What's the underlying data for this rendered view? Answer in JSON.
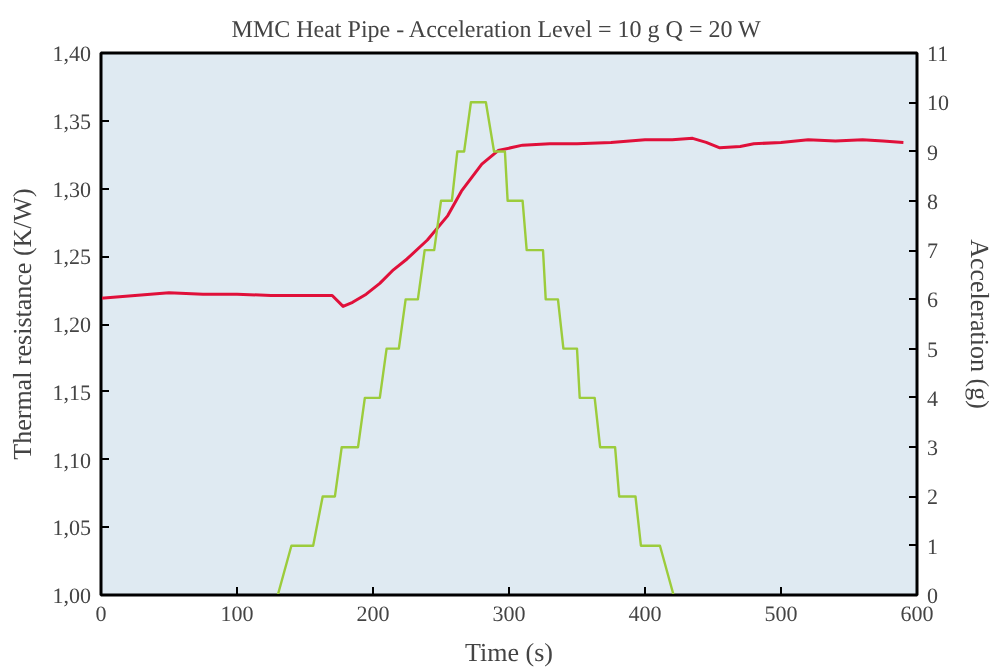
{
  "chart_data": {
    "type": "line",
    "title": "MMC Heat Pipe - Acceleration Level = 10 g     Q = 20 W",
    "xlabel": "Time (s)",
    "ylabel": "Thermal resistance (K/W)",
    "y2label": "Acceleration (g)",
    "xlim": [
      0,
      600
    ],
    "xticks": [
      0,
      100,
      200,
      300,
      400,
      500,
      600
    ],
    "ylim": [
      1.0,
      1.4
    ],
    "yticks": [
      {
        "value": 1.0,
        "label": "1,00"
      },
      {
        "value": 1.05,
        "label": "1,05"
      },
      {
        "value": 1.1,
        "label": "1,10"
      },
      {
        "value": 1.15,
        "label": "1,15"
      },
      {
        "value": 1.2,
        "label": "1,20"
      },
      {
        "value": 1.25,
        "label": "1,25"
      },
      {
        "value": 1.3,
        "label": "1,30"
      },
      {
        "value": 1.35,
        "label": "1,35"
      },
      {
        "value": 1.4,
        "label": "1,40"
      }
    ],
    "y2lim": [
      0,
      11
    ],
    "y2ticks": [
      0,
      1,
      2,
      3,
      4,
      5,
      6,
      7,
      8,
      9,
      10,
      11
    ],
    "grid": false,
    "series": [
      {
        "color": "#e0103a",
        "x": [
          0,
          25,
          50,
          75,
          100,
          125,
          150,
          170,
          178,
          185,
          195,
          205,
          215,
          225,
          240,
          255,
          265,
          280,
          292,
          310,
          330,
          350,
          375,
          400,
          420,
          435,
          445,
          455,
          470,
          480,
          500,
          520,
          540,
          560,
          575,
          590
        ],
        "values": [
          1.219,
          1.221,
          1.223,
          1.222,
          1.222,
          1.221,
          1.221,
          1.221,
          1.213,
          1.216,
          1.222,
          1.23,
          1.24,
          1.248,
          1.262,
          1.28,
          1.298,
          1.318,
          1.328,
          1.332,
          1.333,
          1.333,
          1.334,
          1.336,
          1.336,
          1.337,
          1.334,
          1.33,
          1.331,
          1.333,
          1.334,
          1.336,
          1.335,
          1.336,
          1.335,
          1.334
        ]
      },
      {
        "color": "#9ccc3c",
        "axis": "y2",
        "type": "line",
        "x": [
          130,
          140,
          156,
          163,
          172,
          177,
          189,
          194,
          205,
          210,
          219,
          224,
          233,
          238,
          245,
          250,
          258,
          262,
          267,
          272,
          283,
          289,
          297,
          299,
          310,
          313,
          325,
          327,
          336,
          340,
          350,
          352,
          363,
          367,
          378,
          381,
          393,
          397,
          411,
          421
        ],
        "values": [
          0,
          1,
          1,
          2,
          2,
          3,
          3,
          4,
          4,
          5,
          5,
          6,
          6,
          7,
          7,
          8,
          8,
          9,
          9,
          10,
          10,
          9,
          9,
          8,
          8,
          7,
          7,
          6,
          6,
          5,
          5,
          4,
          4,
          3,
          3,
          2,
          2,
          1,
          1,
          0
        ]
      }
    ]
  }
}
